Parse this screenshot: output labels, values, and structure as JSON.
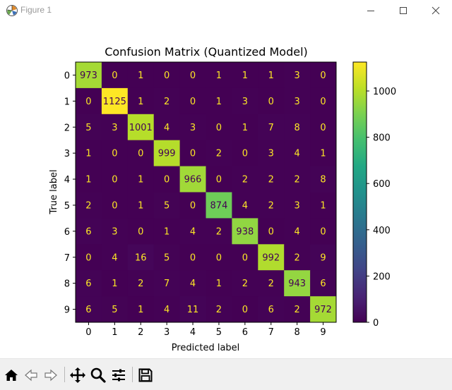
{
  "window": {
    "title": "Figure 1"
  },
  "toolbar": {
    "buttons": [
      {
        "name": "home-icon",
        "tooltip": "Home"
      },
      {
        "name": "back-icon",
        "tooltip": "Back"
      },
      {
        "name": "forward-icon",
        "tooltip": "Forward"
      },
      {
        "name": "pan-icon",
        "tooltip": "Pan"
      },
      {
        "name": "zoom-icon",
        "tooltip": "Zoom"
      },
      {
        "name": "configure-subplots-icon",
        "tooltip": "Subplots"
      },
      {
        "name": "save-icon",
        "tooltip": "Save"
      }
    ]
  },
  "chart_data": {
    "type": "heatmap",
    "title": "Confusion Matrix (Quantized Model)",
    "xlabel": "Predicted label",
    "ylabel": "True label",
    "x_ticks": [
      "0",
      "1",
      "2",
      "3",
      "4",
      "5",
      "6",
      "7",
      "8",
      "9"
    ],
    "y_ticks": [
      "0",
      "1",
      "2",
      "3",
      "4",
      "5",
      "6",
      "7",
      "8",
      "9"
    ],
    "values": [
      [
        973,
        0,
        1,
        0,
        0,
        1,
        1,
        1,
        3,
        0
      ],
      [
        0,
        1125,
        1,
        2,
        0,
        1,
        3,
        0,
        3,
        0
      ],
      [
        5,
        3,
        1001,
        4,
        3,
        0,
        1,
        7,
        8,
        0
      ],
      [
        1,
        0,
        0,
        999,
        0,
        2,
        0,
        3,
        4,
        1
      ],
      [
        1,
        0,
        1,
        0,
        966,
        0,
        2,
        2,
        2,
        8
      ],
      [
        2,
        0,
        1,
        5,
        0,
        874,
        4,
        2,
        3,
        1
      ],
      [
        6,
        3,
        0,
        1,
        4,
        2,
        938,
        0,
        4,
        0
      ],
      [
        0,
        4,
        16,
        5,
        0,
        0,
        0,
        992,
        2,
        9
      ],
      [
        6,
        1,
        2,
        7,
        4,
        1,
        2,
        2,
        943,
        6
      ],
      [
        6,
        5,
        1,
        4,
        11,
        2,
        0,
        6,
        2,
        972
      ]
    ],
    "colormap": "viridis",
    "colorbar": {
      "ticks": [
        0,
        200,
        400,
        600,
        800,
        1000
      ],
      "vmin": 0,
      "vmax": 1125
    },
    "colors": {
      "low_text": "#fde725",
      "high_text": "#440154"
    }
  }
}
